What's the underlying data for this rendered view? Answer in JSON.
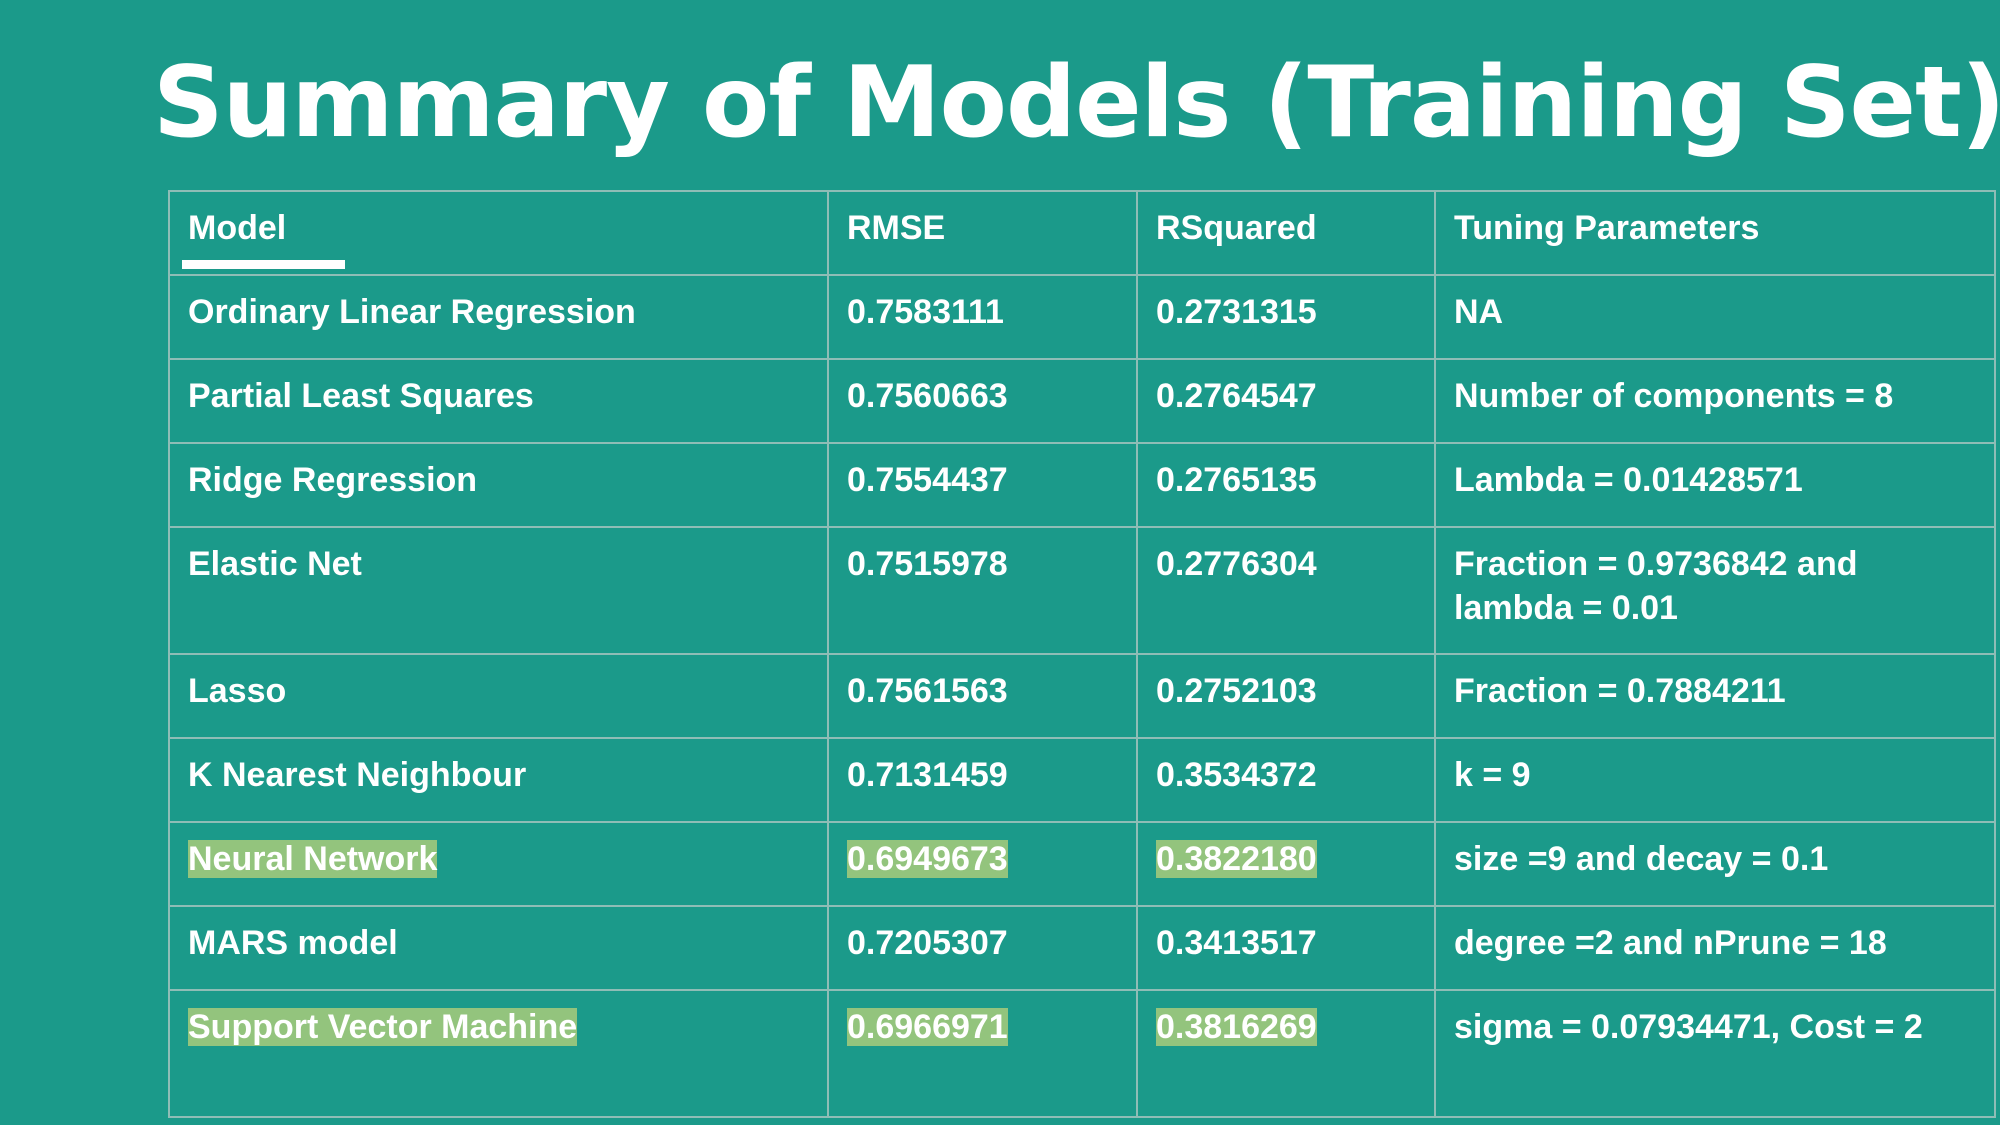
{
  "slide": {
    "title": "Summary of Models (Training Set)"
  },
  "table": {
    "headers": {
      "model": "Model",
      "rmse": "RMSE",
      "rsquared": "RSquared",
      "tuning": "Tuning Parameters"
    },
    "rows": [
      {
        "model": "Ordinary Linear Regression",
        "rmse": "0.7583111",
        "rsquared": "0.2731315",
        "tuning": "NA",
        "highlighted": false
      },
      {
        "model": "Partial Least Squares",
        "rmse": "0.7560663",
        "rsquared": "0.2764547",
        "tuning": "Number of components = 8",
        "highlighted": false
      },
      {
        "model": "Ridge Regression",
        "rmse": "0.7554437",
        "rsquared": "0.2765135",
        "tuning": "Lambda = 0.01428571",
        "highlighted": false
      },
      {
        "model": "Elastic Net",
        "rmse": "0.7515978",
        "rsquared": "0.2776304",
        "tuning": "Fraction = 0.9736842 and lambda = 0.01",
        "highlighted": false
      },
      {
        "model": "Lasso",
        "rmse": "0.7561563",
        "rsquared": "0.2752103",
        "tuning": "Fraction = 0.7884211",
        "highlighted": false
      },
      {
        "model": "K Nearest Neighbour",
        "rmse": "0.7131459",
        "rsquared": "0.3534372",
        "tuning": "k = 9",
        "highlighted": false
      },
      {
        "model": "Neural Network",
        "rmse": "0.6949673",
        "rsquared": "0.3822180",
        "tuning": "size =9 and decay = 0.1",
        "highlighted": true
      },
      {
        "model": "MARS model",
        "rmse": "0.7205307",
        "rsquared": "0.3413517",
        "tuning": "degree =2 and nPrune = 18",
        "highlighted": false
      },
      {
        "model": "Support Vector Machine",
        "rmse": "0.6966971",
        "rsquared": "0.3816269",
        "tuning": "sigma = 0.07934471, Cost = 2",
        "highlighted": true
      }
    ]
  },
  "colors": {
    "background": "#1b9a8a",
    "highlight": "#93c47d",
    "border": "#8fbdb6",
    "text": "#ffffff"
  }
}
